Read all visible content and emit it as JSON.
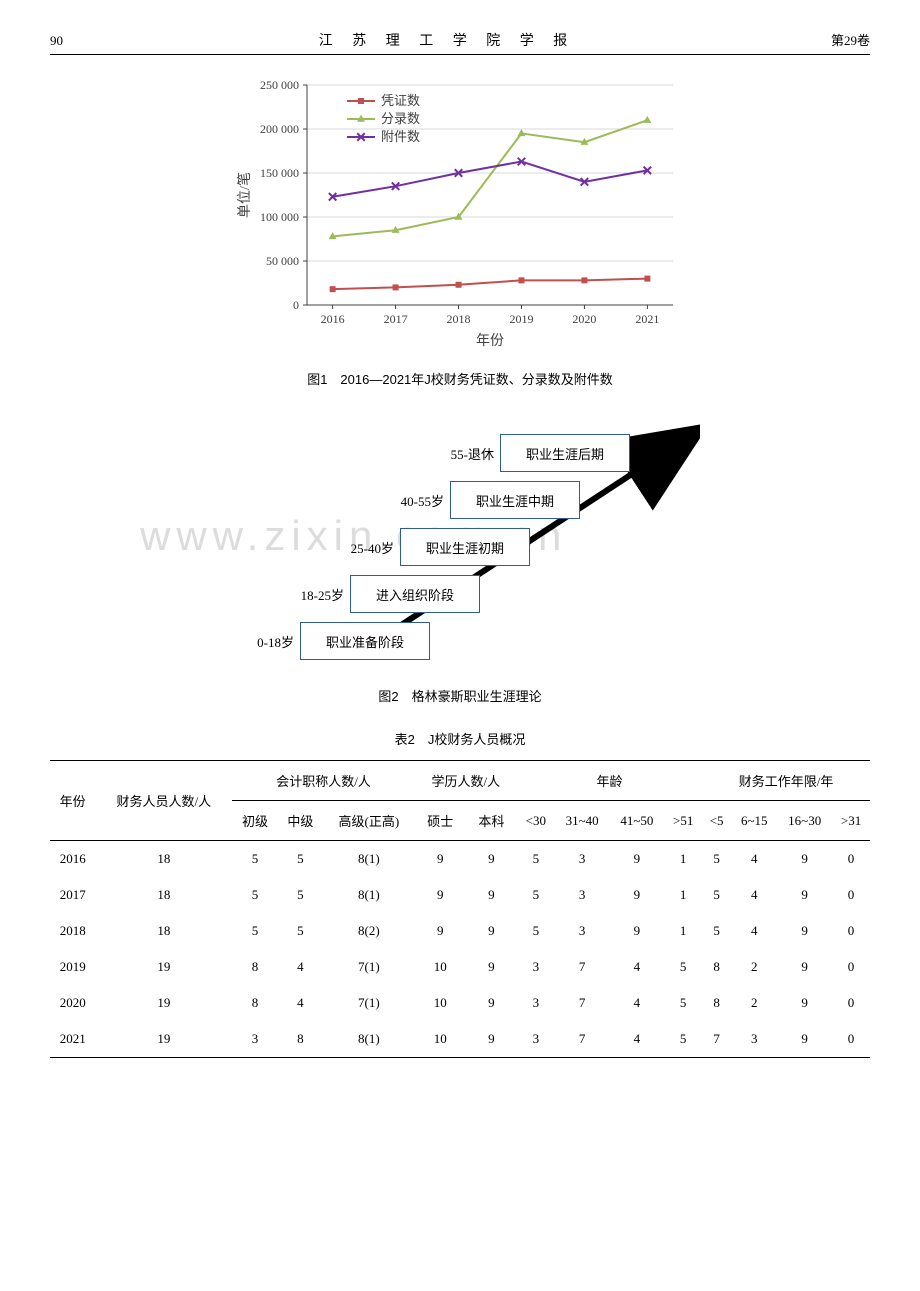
{
  "header": {
    "page": "90",
    "journal": "江 苏 理 工 学 院 学 报",
    "volume": "第29卷"
  },
  "fig1": {
    "type": "line",
    "caption": "图1　2016—2021年J校财务凭证数、分录数及附件数",
    "xlabel": "年份",
    "ylabel": "单位/笔",
    "categories": [
      "2016",
      "2017",
      "2018",
      "2019",
      "2020",
      "2021"
    ],
    "ylim": [
      0,
      250000
    ],
    "yticks": [
      "0",
      "50 000",
      "100 000",
      "150 000",
      "200 000",
      "250 000"
    ],
    "ytick_step": 50000,
    "series": [
      {
        "name": "凭证数",
        "color": "#c0504d",
        "marker": "square",
        "values": [
          18000,
          20000,
          23000,
          28000,
          28000,
          30000
        ]
      },
      {
        "name": "分录数",
        "color": "#9bbb59",
        "marker": "triangle",
        "values": [
          78000,
          85000,
          100000,
          195000,
          185000,
          210000
        ]
      },
      {
        "name": "附件数",
        "color": "#7030a0",
        "marker": "x",
        "values": [
          123000,
          135000,
          150000,
          163000,
          140000,
          153000
        ]
      }
    ],
    "background_color": "#ffffff",
    "axis_color": "#404040",
    "grid_color": "#d9d9d9",
    "line_width": 2,
    "marker_size": 6,
    "label_fontsize": 12,
    "legend_fontsize": 13
  },
  "fig2": {
    "type": "staircase",
    "caption": "图2　格林豪斯职业生涯理论",
    "box_border_color": "#2e5c9a",
    "arrow_color": "#000000",
    "label_fontsize": 13,
    "steps": [
      {
        "age": "0-18岁",
        "label": "职业准备阶段"
      },
      {
        "age": "18-25岁",
        "label": "进入组织阶段"
      },
      {
        "age": "25-40岁",
        "label": "职业生涯初期"
      },
      {
        "age": "40-55岁",
        "label": "职业生涯中期"
      },
      {
        "age": "55-退休",
        "label": "职业生涯后期"
      }
    ],
    "watermark": "www.zixin.com.cn"
  },
  "table2": {
    "caption": "表2　J校财务人员概况",
    "header_row1": [
      "年份",
      "财务人员人数/人",
      "会计职称人数/人",
      "学历人数/人",
      "年龄",
      "财务工作年限/年"
    ],
    "header_row2": [
      "",
      "",
      "初级",
      "中级",
      "高级(正高)",
      "硕士",
      "本科",
      "<30",
      "31~40",
      "41~50",
      ">51",
      "<5",
      "6~15",
      "16~30",
      ">31"
    ],
    "rows": [
      [
        "2016",
        "18",
        "5",
        "5",
        "8(1)",
        "9",
        "9",
        "5",
        "3",
        "9",
        "1",
        "5",
        "4",
        "9",
        "0"
      ],
      [
        "2017",
        "18",
        "5",
        "5",
        "8(1)",
        "9",
        "9",
        "5",
        "3",
        "9",
        "1",
        "5",
        "4",
        "9",
        "0"
      ],
      [
        "2018",
        "18",
        "5",
        "5",
        "8(2)",
        "9",
        "9",
        "5",
        "3",
        "9",
        "1",
        "5",
        "4",
        "9",
        "0"
      ],
      [
        "2019",
        "19",
        "8",
        "4",
        "7(1)",
        "10",
        "9",
        "3",
        "7",
        "4",
        "5",
        "8",
        "2",
        "9",
        "0"
      ],
      [
        "2020",
        "19",
        "8",
        "4",
        "7(1)",
        "10",
        "9",
        "3",
        "7",
        "4",
        "5",
        "8",
        "2",
        "9",
        "0"
      ],
      [
        "2021",
        "19",
        "3",
        "8",
        "8(1)",
        "10",
        "9",
        "3",
        "7",
        "4",
        "5",
        "7",
        "3",
        "9",
        "0"
      ]
    ],
    "group_spans": [
      1,
      1,
      3,
      2,
      4,
      4
    ]
  }
}
